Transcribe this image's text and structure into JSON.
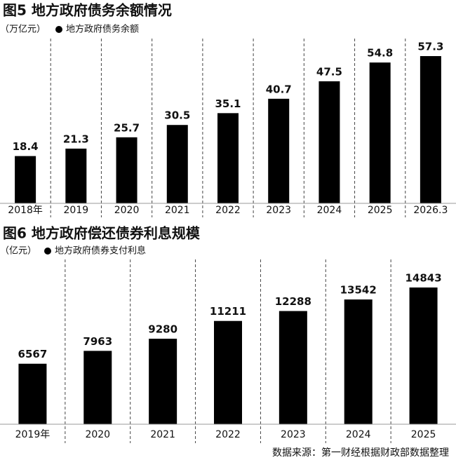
{
  "chart_data": [
    {
      "type": "bar",
      "title": "图5 地方政府债务余额情况",
      "unit": "（万亿元）",
      "categories": [
        "2018年",
        "2019",
        "2020",
        "2021",
        "2022",
        "2023",
        "2024",
        "2025",
        "2026.3"
      ],
      "series": [
        {
          "name": "地方政府债务余额",
          "color": "#000000",
          "values": [
            18.4,
            21.3,
            25.7,
            30.5,
            35.1,
            40.7,
            47.5,
            54.8,
            57.3
          ]
        }
      ]
    },
    {
      "type": "bar",
      "title": "图6 地方政府偿还债券利息规模",
      "unit": "（亿元）",
      "categories": [
        "2019年",
        "2020",
        "2021",
        "2022",
        "2023",
        "2024",
        "2025"
      ],
      "series": [
        {
          "name": "地方政府债券支付利息",
          "color": "#000000",
          "values": [
            6567,
            7963,
            9280,
            11211,
            12288,
            13542,
            14843
          ]
        }
      ],
      "source": "数据来源：第一财经根据财政部数据整理"
    }
  ]
}
